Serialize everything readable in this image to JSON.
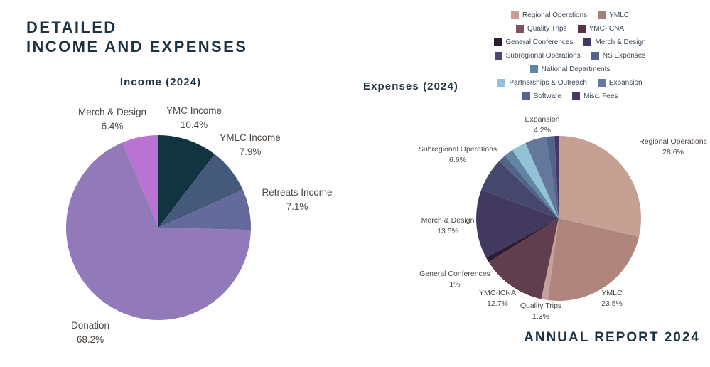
{
  "page": {
    "title_line1": "DETAILED",
    "title_line2": "INCOME AND EXPENSES",
    "footer": "ANNUAL REPORT 2024",
    "title_color": "#1d3341",
    "background_color": "#ffffff"
  },
  "chart_data": [
    {
      "type": "pie",
      "title": "Income (2024)",
      "start_angle_deg": -90,
      "direction": "clockwise",
      "labels": "outside",
      "legend_position": "none",
      "slices": [
        {
          "label": "YMC Income",
          "value": 10.4,
          "display": "10.4%",
          "color": "#123440",
          "labeled": true
        },
        {
          "label": "YMLC Income",
          "value": 7.9,
          "display": "7.9%",
          "color": "#45597b",
          "labeled": true
        },
        {
          "label": "Retreats Income",
          "value": 7.1,
          "display": "7.1%",
          "color": "#646a9b",
          "labeled": true
        },
        {
          "label": "Donation",
          "value": 68.2,
          "display": "68.2%",
          "color": "#9179ba",
          "labeled": true
        },
        {
          "label": "Merch & Design",
          "value": 6.4,
          "display": "6.4%",
          "color": "#b973d3",
          "labeled": true
        }
      ]
    },
    {
      "type": "pie",
      "title": "Expenses (2024)",
      "start_angle_deg": -90,
      "direction": "clockwise",
      "labels": "outside",
      "legend_position": "top-right",
      "slices": [
        {
          "label": "Regional Operations",
          "value": 28.6,
          "display": "28.6%",
          "color": "#c7a094",
          "labeled": true
        },
        {
          "label": "YMLC",
          "value": 23.5,
          "display": "23.5%",
          "color": "#b0867c",
          "labeled": true
        },
        {
          "label": "Quality Trips",
          "value": 1.3,
          "display": "1.3%",
          "color": "#c2a29a",
          "labeled": true
        },
        {
          "label": "YMC-ICNA",
          "value": 12.7,
          "display": "12.7%",
          "color": "#613e4e",
          "labeled": true
        },
        {
          "label": "General Conferences",
          "value": 1.0,
          "display": "1%",
          "color": "#2d1c33",
          "labeled": true
        },
        {
          "label": "Merch & Design",
          "value": 13.5,
          "display": "13.5%",
          "color": "#423a5e",
          "labeled": true
        },
        {
          "label": "Subregional Operations",
          "value": 6.6,
          "display": "6.6%",
          "color": "#45486c",
          "labeled": true
        },
        {
          "label": "NS Expenses",
          "value": 1.5,
          "display": "",
          "color": "#53648b",
          "labeled": false
        },
        {
          "label": "National Departments",
          "value": 1.8,
          "display": "",
          "color": "#6086a4",
          "labeled": false
        },
        {
          "label": "Partnerships & Outreach",
          "value": 2.9,
          "display": "",
          "color": "#93c1d6",
          "labeled": false
        },
        {
          "label": "Expansion",
          "value": 4.2,
          "display": "4.2%",
          "color": "#64789b",
          "labeled": true
        },
        {
          "label": "Software",
          "value": 1.6,
          "display": "",
          "color": "#52648c",
          "labeled": false
        },
        {
          "label": "Misc. Fees",
          "value": 0.8,
          "display": "",
          "color": "#473667",
          "labeled": false
        }
      ],
      "legend": [
        {
          "label": "Regional Operations",
          "color": "#c7a094"
        },
        {
          "label": "YMLC",
          "color": "#a87f78"
        },
        {
          "label": "Quality Trips",
          "color": "#7d5364"
        },
        {
          "label": "YMC-ICNA",
          "color": "#5c3344"
        },
        {
          "label": "General Conferences",
          "color": "#2d1c33"
        },
        {
          "label": "Merch & Design",
          "color": "#423a5e"
        },
        {
          "label": "Subregional Operations",
          "color": "#45486c"
        },
        {
          "label": "NS Expenses",
          "color": "#53648b"
        },
        {
          "label": "National Departments",
          "color": "#6086a4"
        },
        {
          "label": "Partnerships & Outreach",
          "color": "#93c1d6"
        },
        {
          "label": "Expansion",
          "color": "#64789b"
        },
        {
          "label": "Software",
          "color": "#52648c"
        },
        {
          "label": "Misc. Fees",
          "color": "#473667"
        }
      ]
    }
  ]
}
